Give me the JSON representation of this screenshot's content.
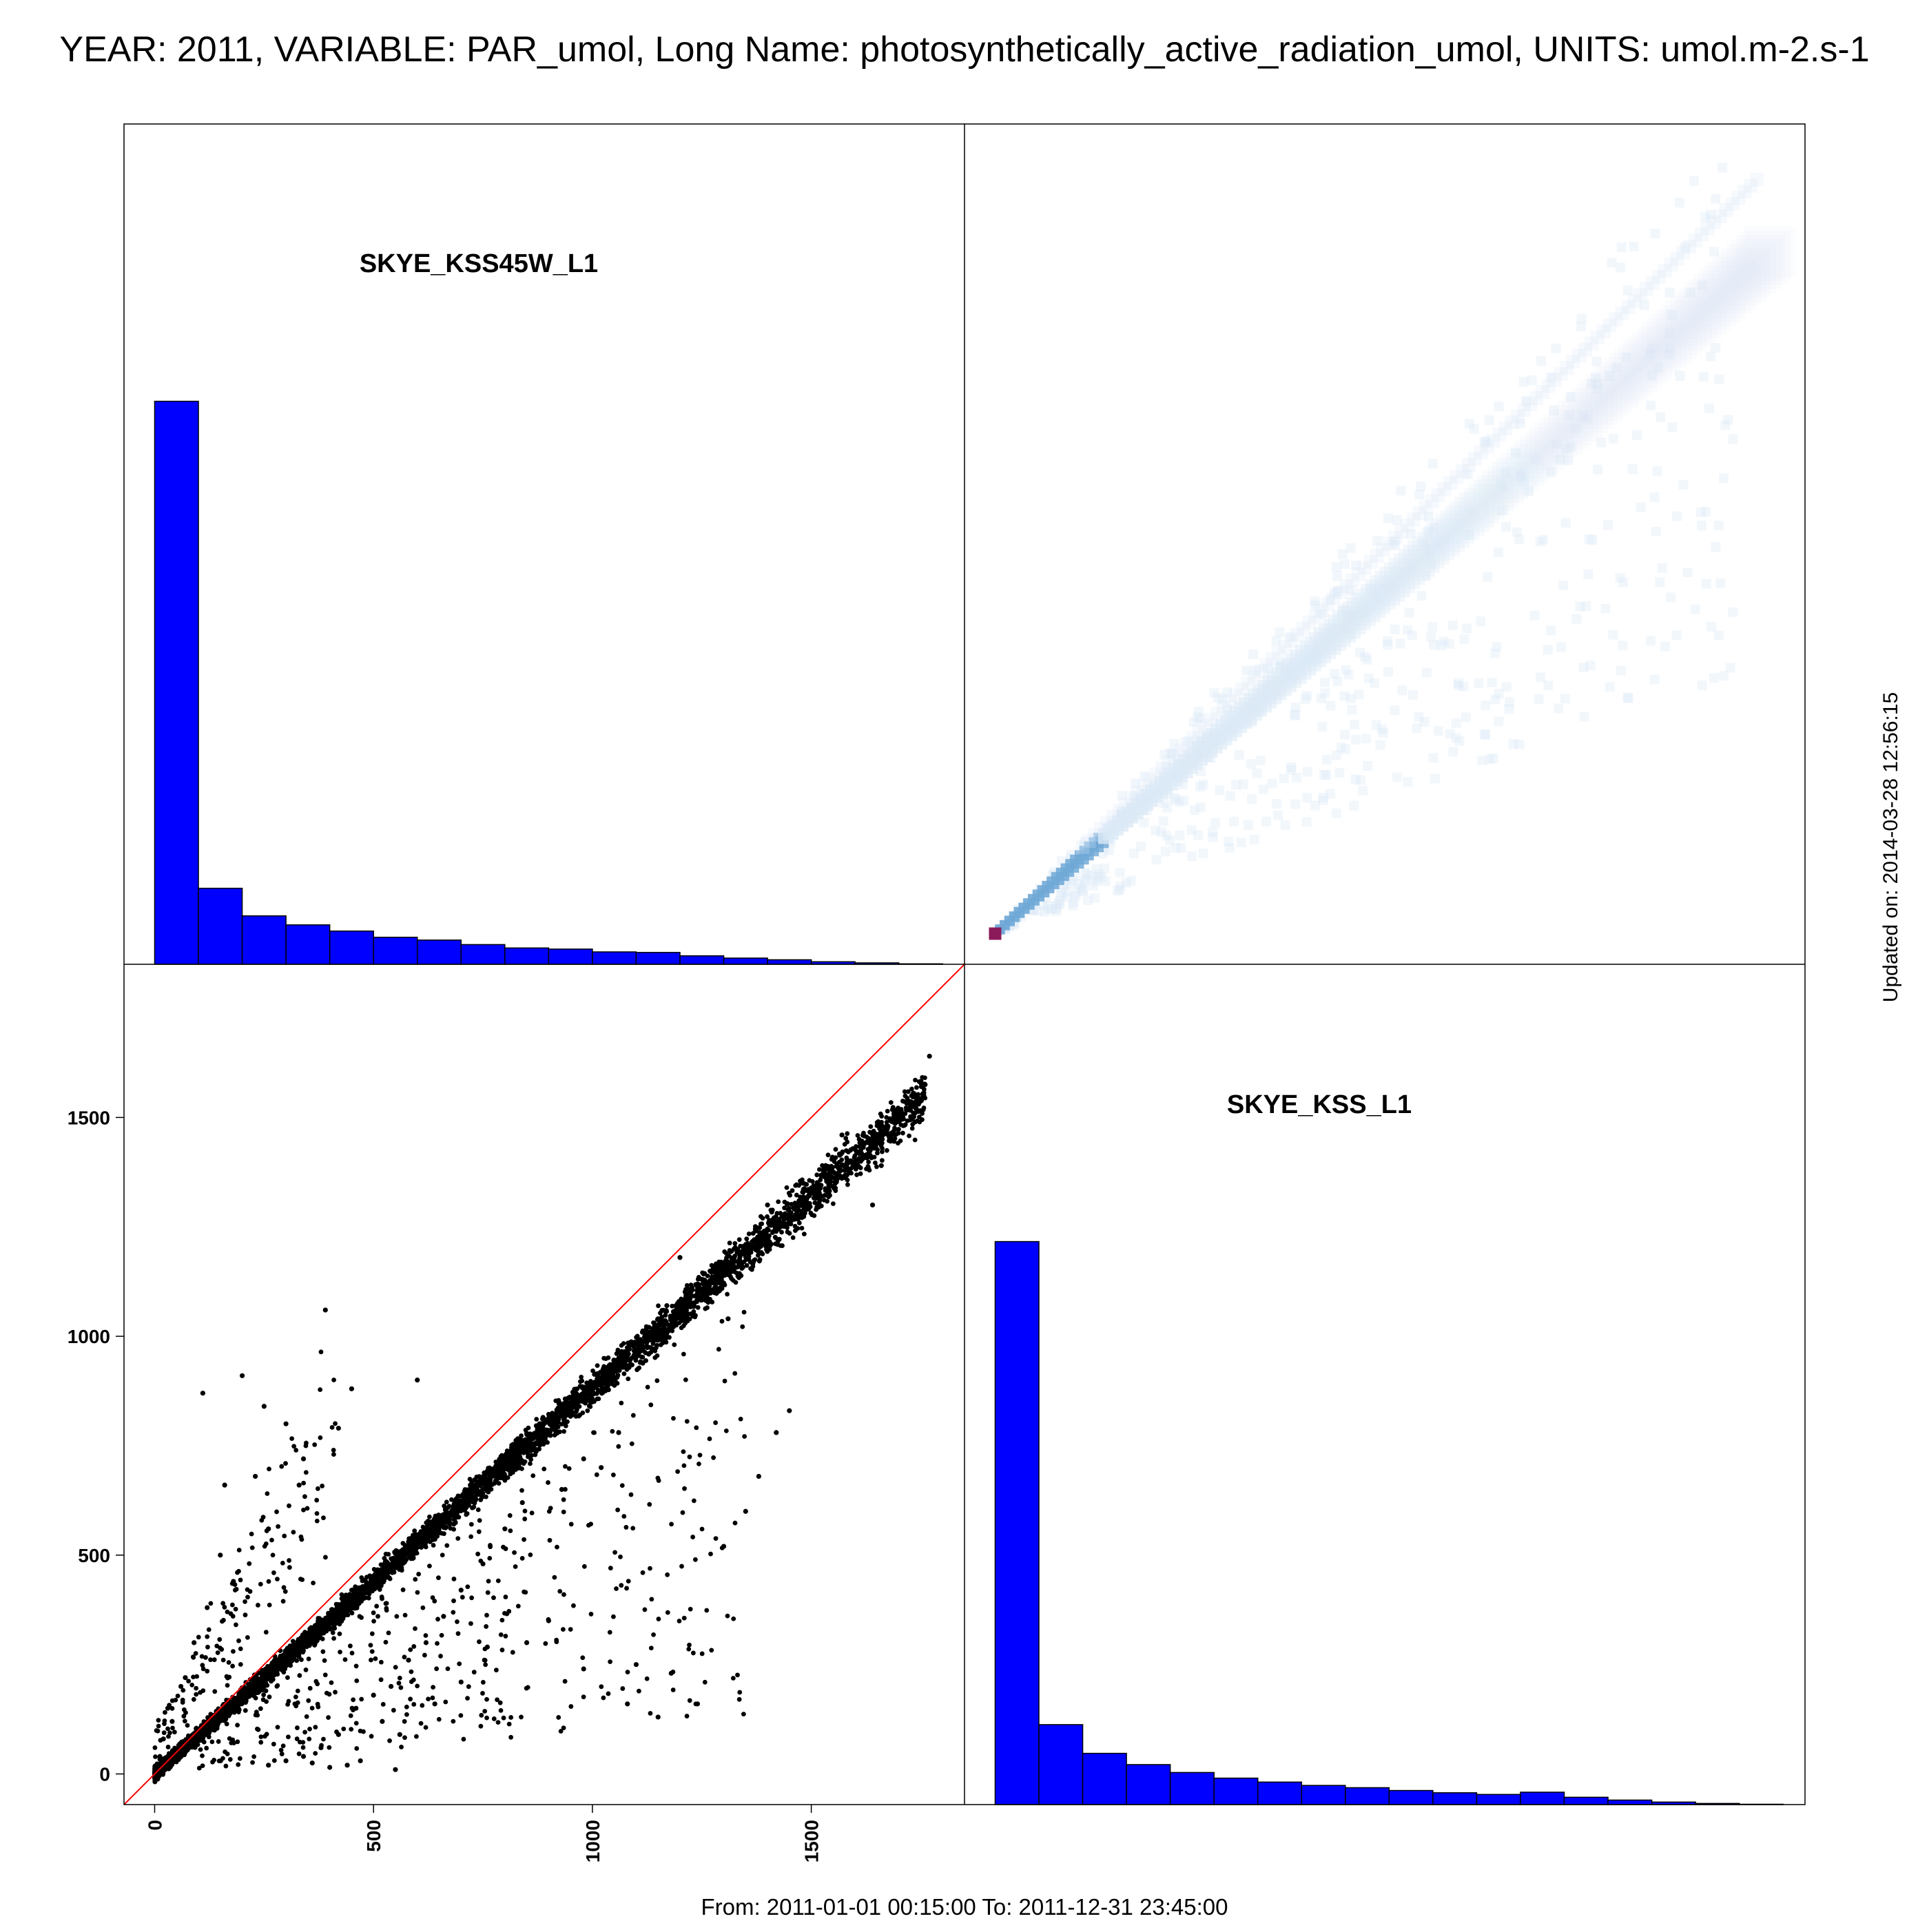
{
  "title": "YEAR: 2011, VARIABLE: PAR_umol, Long Name: photosynthetically_active_radiation_umol, UNITS: umol.m-2.s-1",
  "footer": "From: 2011-01-01 00:15:00 To: 2011-12-31 23:45:00",
  "updated": "Updated on: 2014-03-28 12:56:15",
  "colors": {
    "histogram_fill": "#0000ff",
    "histogram_edge": "#000000",
    "scatter_points": "#000000",
    "identity_line": "#ff0000",
    "density_light": "#dbe9f6",
    "density_mid": "#6fa8d6",
    "density_peak": "#8b1a5a"
  },
  "chart_data": [
    {
      "type": "bar",
      "panel": "top-left diagonal",
      "label": "SKYE_KSS45W_L1",
      "bins": [
        0,
        100,
        200,
        300,
        400,
        500,
        600,
        700,
        800,
        900,
        1000,
        1100,
        1200,
        1300,
        1400,
        1500,
        1600,
        1700
      ],
      "values": [
        100,
        13.5,
        8.6,
        7.0,
        5.9,
        4.8,
        4.3,
        3.5,
        2.9,
        2.7,
        2.2,
        2.1,
        1.5,
        1.1,
        0.8,
        0.45,
        0.25,
        0.08
      ],
      "grid": false
    },
    {
      "type": "heatmap",
      "panel": "top-right",
      "description_axes": [
        "SKYE_KSS45W_L1",
        "SKYE_KSS_L1"
      ],
      "xlim": [
        -70,
        1850
      ],
      "ylim": [
        -70,
        1850
      ],
      "peak": [
        0,
        0
      ],
      "ridge_slope": 0.88
    },
    {
      "type": "scatter",
      "panel": "bottom-left",
      "xlabel": "SKYE_KSS45W_L1",
      "ylabel": "SKYE_KSS_L1",
      "xlim": [
        -70,
        1850
      ],
      "ylim": [
        -70,
        1850
      ],
      "xticks": [
        0,
        500,
        1000,
        1500
      ],
      "yticks": [
        0,
        500,
        1000,
        1500
      ],
      "identity_line": true,
      "main_slope": 0.88,
      "points": [
        [
          1770,
          1640
        ],
        [
          1760,
          1575
        ],
        [
          1740,
          1520
        ],
        [
          1720,
          1540
        ],
        [
          1700,
          1510
        ],
        [
          1660,
          1390
        ],
        [
          1640,
          1300
        ],
        [
          1600,
          1400
        ],
        [
          1570,
          1460
        ],
        [
          1480,
          1350
        ],
        [
          1430,
          1250
        ],
        [
          1400,
          1300
        ],
        [
          1350,
          1200
        ],
        [
          1310,
          1040
        ],
        [
          1290,
          1160
        ],
        [
          1250,
          1130
        ],
        [
          1200,
          1180
        ],
        [
          1170,
          1070
        ],
        [
          1150,
          1040
        ],
        [
          1100,
          960
        ],
        [
          1060,
          780
        ],
        [
          1020,
          700
        ],
        [
          980,
          720
        ],
        [
          930,
          650
        ],
        [
          880,
          800
        ],
        [
          840,
          620
        ],
        [
          800,
          560
        ],
        [
          750,
          480
        ],
        [
          700,
          420
        ],
        [
          660,
          360
        ],
        [
          620,
          300
        ],
        [
          580,
          260
        ],
        [
          540,
          200
        ],
        [
          500,
          180
        ],
        [
          460,
          150
        ],
        [
          420,
          90
        ],
        [
          380,
          60
        ],
        [
          340,
          40
        ],
        [
          300,
          30
        ],
        [
          260,
          20
        ],
        [
          1150,
          130
        ],
        [
          1080,
          160
        ],
        [
          980,
          240
        ],
        [
          900,
          350
        ],
        [
          850,
          300
        ],
        [
          760,
          290
        ],
        [
          700,
          210
        ],
        [
          640,
          160
        ],
        [
          560,
          90
        ],
        [
          520,
          120
        ],
        [
          470,
          30
        ],
        [
          440,
          20
        ],
        [
          400,
          15
        ],
        [
          360,
          25
        ],
        [
          550,
          10
        ],
        [
          110,
          870
        ],
        [
          200,
          910
        ],
        [
          300,
          800
        ],
        [
          390,
          1060
        ],
        [
          450,
          880
        ],
        [
          230,
          680
        ],
        [
          160,
          660
        ],
        [
          150,
          500
        ],
        [
          250,
          840
        ],
        [
          330,
          660
        ],
        [
          180,
          440
        ],
        [
          90,
          300
        ],
        [
          60,
          200
        ],
        [
          30,
          150
        ],
        [
          20,
          80
        ],
        [
          40,
          120
        ],
        [
          70,
          220
        ],
        [
          120,
          380
        ],
        [
          260,
          560
        ],
        [
          340,
          720
        ],
        [
          420,
          790
        ],
        [
          600,
          900
        ],
        [
          1100,
          250
        ],
        [
          1180,
          230
        ],
        [
          1240,
          160
        ],
        [
          1300,
          520
        ],
        [
          1350,
          600
        ],
        [
          1380,
          680
        ],
        [
          1420,
          780
        ],
        [
          1450,
          830
        ]
      ]
    },
    {
      "type": "bar",
      "panel": "bottom-right diagonal",
      "label": "SKYE_KSS_L1",
      "bins": [
        0,
        100,
        200,
        300,
        400,
        500,
        600,
        700,
        800,
        900,
        1000,
        1100,
        1200,
        1300,
        1400,
        1500,
        1600,
        1700
      ],
      "values": [
        100,
        14.2,
        9.1,
        7.1,
        5.7,
        4.7,
        4.0,
        3.4,
        3.0,
        2.5,
        2.1,
        1.8,
        2.2,
        1.3,
        0.8,
        0.45,
        0.2,
        0.06
      ],
      "grid": false
    }
  ]
}
